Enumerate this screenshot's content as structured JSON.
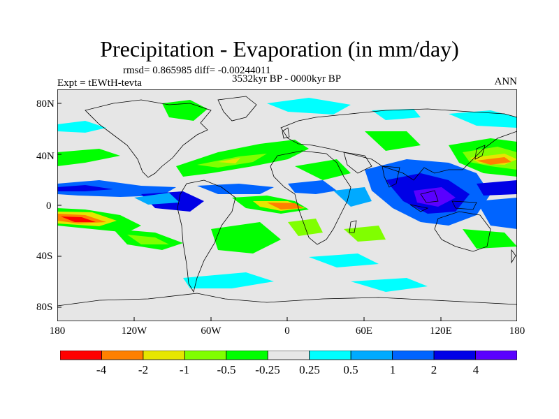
{
  "title": "Precipitation - Evaporation (in mm/day)",
  "rmsd_text": "rmsd= 0.865985 diff= -0.00244011",
  "period_text": "3532kyr BP - 0000kyr BP",
  "expt_text": "Expt = tEWtH-tevta",
  "season_text": "ANN",
  "lat_labels": [
    "80N",
    "40N",
    "0",
    "40S",
    "80S"
  ],
  "lon_labels": [
    "180",
    "120W",
    "60W",
    "0",
    "60E",
    "120E",
    "180"
  ],
  "colorbar": {
    "colors": [
      "#ff0000",
      "#ff8000",
      "#e6e600",
      "#80ff00",
      "#00ff00",
      "#e6e6e6",
      "#00ffff",
      "#00aaff",
      "#0064ff",
      "#0000e6",
      "#5a00ff"
    ],
    "labels": [
      "-4",
      "-2",
      "-1",
      "-0.5",
      "-0.25",
      "0.25",
      "0.5",
      "1",
      "2",
      "4"
    ]
  },
  "map": {
    "background": "#e6e6e6",
    "coast_color": "#000000"
  }
}
